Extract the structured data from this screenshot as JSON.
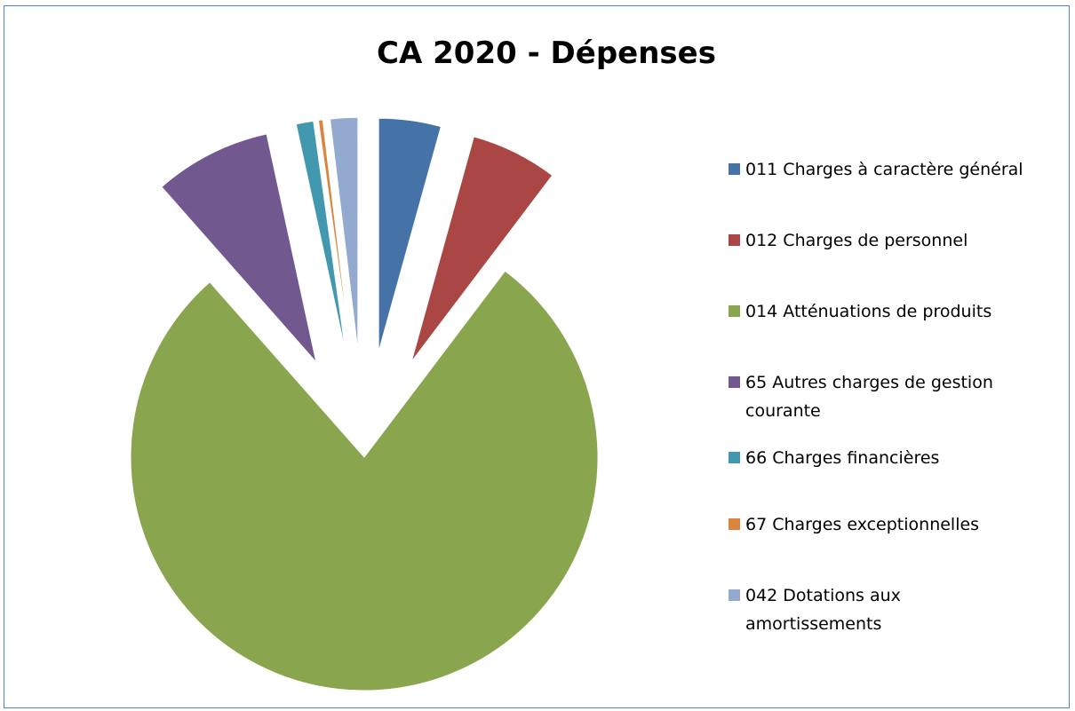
{
  "chart_data": {
    "type": "pie",
    "title": "CA 2020 - Dépenses",
    "exploded": true,
    "legend_position": "right",
    "series": [
      {
        "label": "011 Charges à caractère général",
        "value": 4.3,
        "color": "#4572a7"
      },
      {
        "label": "012 Charges de personnel",
        "value": 6.0,
        "color": "#aa4643"
      },
      {
        "label": "014 Atténuations de produits",
        "value": 78.2,
        "color": "#89a54e"
      },
      {
        "label": "65 Autres charges de gestion courante",
        "value": 8.1,
        "color": "#71588f"
      },
      {
        "label": "66 Charges financières",
        "value": 1.2,
        "color": "#4198af"
      },
      {
        "label": "67 Charges exceptionnelles",
        "value": 0.3,
        "color": "#db843d"
      },
      {
        "label": "042 Dotations aux amortissements",
        "value": 1.9,
        "color": "#93a9cf"
      }
    ]
  }
}
